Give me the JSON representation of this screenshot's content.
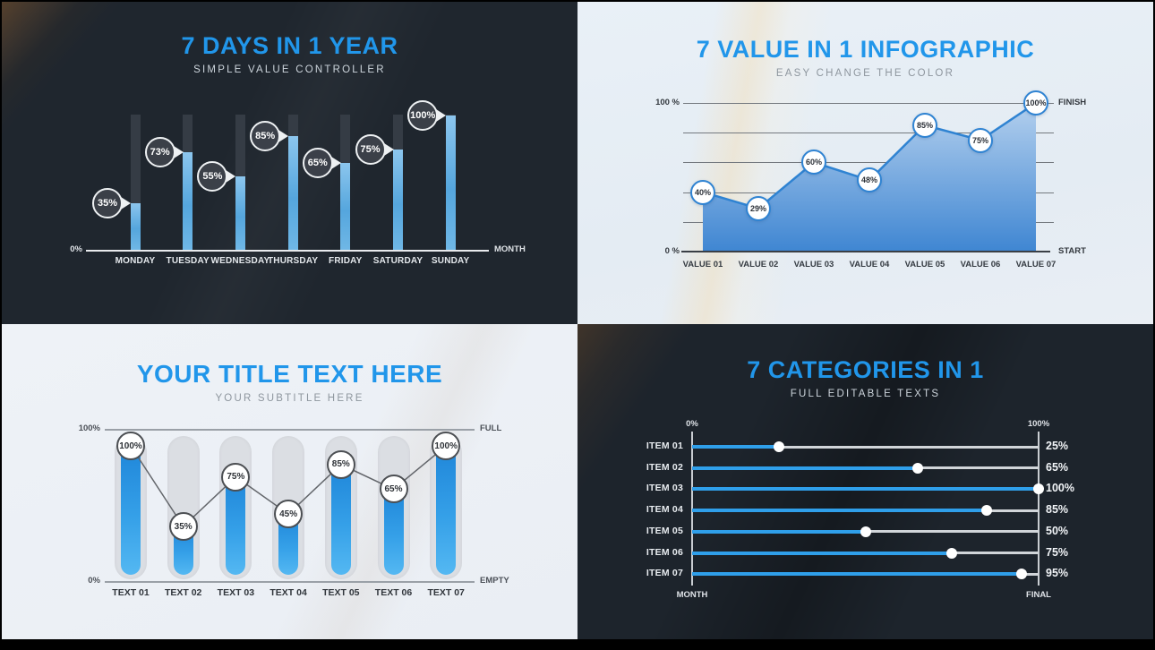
{
  "colors": {
    "accent": "#2196ea",
    "bar_blue": "#55a6dd",
    "area_line_blue": "#2f83d2",
    "slider_blue": "#2f9fea",
    "dark_background": "#1f262e",
    "light_background": "#eaf0f6"
  },
  "chart_data": [
    {
      "id": "days-bar-chart",
      "type": "bar",
      "title": "7 DAYS IN 1 YEAR",
      "subtitle": "SIMPLE VALUE CONTROLLER",
      "categories": [
        "MONDAY",
        "TUESDAY",
        "WEDNESDAY",
        "THURSDAY",
        "FRIDAY",
        "SATURDAY",
        "SUNDAY"
      ],
      "values": [
        35,
        73,
        55,
        85,
        65,
        75,
        100
      ],
      "value_labels": [
        "35%",
        "73%",
        "55%",
        "85%",
        "65%",
        "75%",
        "100%"
      ],
      "ylabel_zero": "0%",
      "xlabel_end": "MONTH",
      "ylim": [
        0,
        100
      ],
      "legend": "none",
      "grid": "off"
    },
    {
      "id": "values-area-chart",
      "type": "area",
      "title": "7 VALUE IN 1 INFOGRAPHIC",
      "subtitle": "EASY CHANGE THE COLOR",
      "categories": [
        "VALUE 01",
        "VALUE 02",
        "VALUE 03",
        "VALUE 04",
        "VALUE 05",
        "VALUE 06",
        "VALUE 07"
      ],
      "values": [
        40,
        29,
        60,
        48,
        85,
        75,
        100
      ],
      "value_labels": [
        "40%",
        "29%",
        "60%",
        "48%",
        "85%",
        "75%",
        "100%"
      ],
      "y_top_label": "100 %",
      "y_bottom_label": "0 %",
      "top_right_label": "FINISH",
      "bottom_right_label": "START",
      "gridlines_pct": [
        100,
        80,
        60,
        40,
        20
      ],
      "ylim": [
        0,
        100
      ],
      "grid": "on"
    },
    {
      "id": "pill-bar-line-chart",
      "type": "bar-line",
      "title": "YOUR TITLE TEXT HERE",
      "subtitle": "YOUR SUBTITLE HERE",
      "categories": [
        "TEXT 01",
        "TEXT 02",
        "TEXT 03",
        "TEXT 04",
        "TEXT 05",
        "TEXT 06",
        "TEXT 07"
      ],
      "values": [
        100,
        35,
        75,
        45,
        85,
        65,
        100
      ],
      "value_labels": [
        "100%",
        "35%",
        "75%",
        "45%",
        "85%",
        "65%",
        "100%"
      ],
      "y_top_label": "100%",
      "y_bottom_label": "0%",
      "top_right_label": "FULL",
      "bottom_right_label": "EMPTY",
      "ylim": [
        0,
        100
      ],
      "grid": "off"
    },
    {
      "id": "categories-slider-chart",
      "type": "hbar",
      "title": "7 CATEGORIES IN 1",
      "subtitle": "FULL EDITABLE TEXTS",
      "categories": [
        "ITEM 01",
        "ITEM 02",
        "ITEM 03",
        "ITEM 04",
        "ITEM 05",
        "ITEM 06",
        "ITEM 07"
      ],
      "values": [
        25,
        65,
        100,
        85,
        50,
        75,
        95
      ],
      "value_labels": [
        "25%",
        "65%",
        "100%",
        "85%",
        "50%",
        "75%",
        "95%"
      ],
      "axis_top_left": "0%",
      "axis_top_right": "100%",
      "axis_bottom_left": "MONTH",
      "axis_bottom_right": "FINAL",
      "xlim": [
        0,
        100
      ],
      "grid": "off"
    }
  ]
}
